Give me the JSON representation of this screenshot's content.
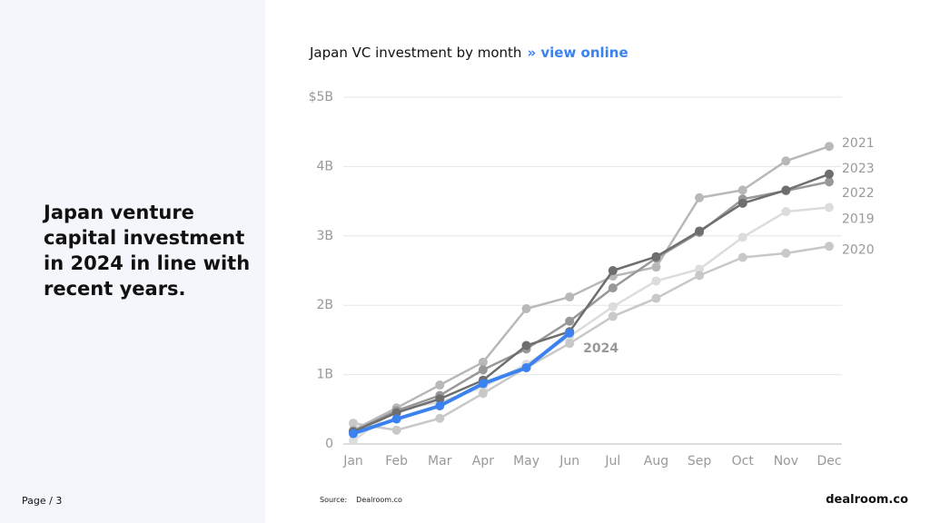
{
  "headline": "Japan venture capital investment in 2024 in line with recent years.",
  "page": {
    "label": "Page",
    "number": "/ 3"
  },
  "source": {
    "label": "Source:",
    "value": "Dealroom.co"
  },
  "logo": "dealroom.co",
  "link": "» view online",
  "chart_data": {
    "type": "line",
    "title": "Japan VC investment by month",
    "categories": [
      "Jan",
      "Feb",
      "Mar",
      "Apr",
      "May",
      "Jun",
      "Jul",
      "Aug",
      "Sep",
      "Oct",
      "Nov",
      "Dec"
    ],
    "ylim": [
      0,
      5
    ],
    "yticks": [
      0,
      {
        "value": 1,
        "label": "1B"
      },
      {
        "value": 2,
        "label": "2B"
      },
      {
        "value": 3,
        "label": "3B"
      },
      {
        "value": 4,
        "label": "4B"
      },
      {
        "value": 5,
        "label": "$5B"
      }
    ],
    "grid": true,
    "series": [
      {
        "name": "2019",
        "color": "#dcdcdc",
        "values": [
          0.05,
          0.5,
          0.6,
          0.82,
          1.15,
          1.55,
          1.98,
          2.35,
          2.52,
          2.98,
          3.35,
          3.41
        ]
      },
      {
        "name": "2020",
        "color": "#c8c8c8",
        "values": [
          0.3,
          0.2,
          0.37,
          0.73,
          1.1,
          1.45,
          1.84,
          2.1,
          2.43,
          2.69,
          2.75,
          2.85
        ]
      },
      {
        "name": "2021",
        "color": "#b8b8b8",
        "values": [
          0.2,
          0.52,
          0.85,
          1.18,
          1.95,
          2.12,
          2.42,
          2.55,
          3.55,
          3.66,
          4.08,
          4.29
        ]
      },
      {
        "name": "2022",
        "color": "#989898",
        "values": [
          0.18,
          0.48,
          0.7,
          1.07,
          1.37,
          1.77,
          2.25,
          2.68,
          3.05,
          3.53,
          3.65,
          3.78
        ]
      },
      {
        "name": "2023",
        "color": "#6e6e6e",
        "values": [
          0.18,
          0.45,
          0.65,
          0.92,
          1.42,
          1.62,
          2.5,
          2.7,
          3.07,
          3.47,
          3.66,
          3.89
        ]
      },
      {
        "name": "2024",
        "color": "#3b82f0",
        "values": [
          0.15,
          0.36,
          0.55,
          0.87,
          1.1,
          1.6,
          null,
          null,
          null,
          null,
          null,
          null
        ]
      }
    ]
  }
}
